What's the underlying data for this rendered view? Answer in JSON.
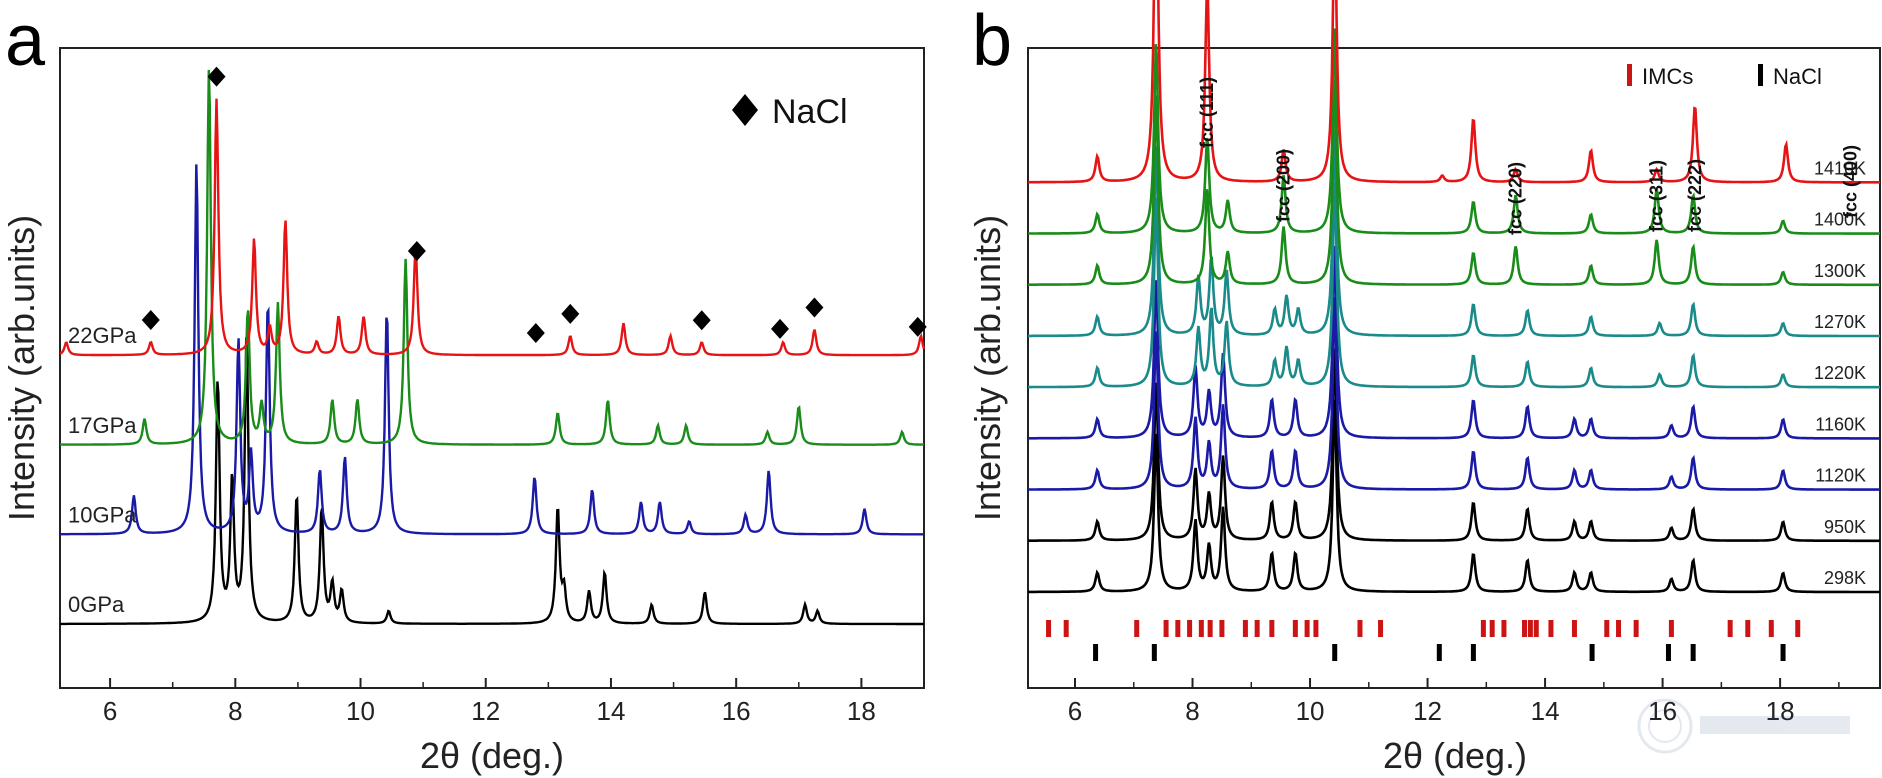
{
  "chart_data": [
    {
      "type": "line",
      "panel": "a",
      "xlabel": "2θ (deg.)",
      "ylabel": "Intensity (arb.units)",
      "xlim": [
        5.2,
        19.0
      ],
      "ylim": [
        0,
        1
      ],
      "xticks": [
        "6",
        "8",
        "10",
        "12",
        "14",
        "16",
        "18"
      ],
      "legend": {
        "label": "NaCl",
        "symbol": "◆",
        "position": "top-right"
      },
      "nacl_markers_2theta": [
        6.65,
        7.7,
        10.9,
        12.8,
        13.35,
        15.45,
        16.7,
        17.25,
        18.9
      ],
      "series": [
        {
          "name": "0GPa",
          "color": "#000000",
          "baseline": 0.1,
          "label": "0GPa",
          "peaks": [
            [
              7.72,
              0.38
            ],
            [
              7.95,
              0.22
            ],
            [
              8.18,
              0.45
            ],
            [
              8.98,
              0.2
            ],
            [
              9.38,
              0.18
            ],
            [
              9.55,
              0.06
            ],
            [
              9.7,
              0.05
            ],
            [
              10.45,
              0.02
            ],
            [
              13.15,
              0.18
            ],
            [
              13.25,
              0.05
            ],
            [
              13.65,
              0.05
            ],
            [
              13.9,
              0.08
            ],
            [
              14.65,
              0.03
            ],
            [
              15.5,
              0.05
            ],
            [
              17.1,
              0.03
            ],
            [
              17.3,
              0.02
            ]
          ]
        },
        {
          "name": "10GPa",
          "color": "#1a1aa6",
          "baseline": 0.24,
          "label": "10GPa",
          "peaks": [
            [
              6.38,
              0.06
            ],
            [
              7.38,
              0.58
            ],
            [
              8.05,
              0.3
            ],
            [
              8.25,
              0.12
            ],
            [
              8.52,
              0.36
            ],
            [
              9.35,
              0.1
            ],
            [
              9.75,
              0.12
            ],
            [
              10.42,
              0.35
            ],
            [
              12.78,
              0.09
            ],
            [
              13.7,
              0.07
            ],
            [
              14.48,
              0.05
            ],
            [
              14.78,
              0.05
            ],
            [
              15.25,
              0.02
            ],
            [
              16.15,
              0.03
            ],
            [
              16.52,
              0.1
            ],
            [
              18.05,
              0.04
            ]
          ]
        },
        {
          "name": "17GPa",
          "color": "#1a8c1a",
          "baseline": 0.38,
          "label": "17GPa",
          "peaks": [
            [
              6.55,
              0.04
            ],
            [
              7.58,
              0.59
            ],
            [
              8.2,
              0.21
            ],
            [
              8.42,
              0.06
            ],
            [
              8.68,
              0.22
            ],
            [
              9.55,
              0.07
            ],
            [
              9.95,
              0.07
            ],
            [
              10.72,
              0.29
            ],
            [
              13.15,
              0.05
            ],
            [
              13.95,
              0.07
            ],
            [
              14.75,
              0.03
            ],
            [
              15.2,
              0.03
            ],
            [
              16.5,
              0.02
            ],
            [
              17.0,
              0.06
            ],
            [
              18.65,
              0.02
            ]
          ]
        },
        {
          "name": "22GPa",
          "color": "#e61414",
          "baseline": 0.52,
          "label": "22GPa",
          "peaks": [
            [
              5.3,
              0.02
            ],
            [
              6.65,
              0.02
            ],
            [
              7.7,
              0.4
            ],
            [
              8.3,
              0.18
            ],
            [
              8.55,
              0.04
            ],
            [
              8.8,
              0.21
            ],
            [
              9.3,
              0.02
            ],
            [
              9.65,
              0.06
            ],
            [
              10.05,
              0.06
            ],
            [
              10.88,
              0.17
            ],
            [
              13.35,
              0.03
            ],
            [
              14.2,
              0.05
            ],
            [
              14.95,
              0.03
            ],
            [
              15.45,
              0.02
            ],
            [
              16.75,
              0.02
            ],
            [
              17.25,
              0.04
            ],
            [
              18.95,
              0.03
            ]
          ]
        }
      ]
    },
    {
      "type": "line",
      "panel": "b",
      "xlabel": "2θ (deg.)",
      "ylabel": "Intensity (arb.units)",
      "xlim": [
        5.2,
        19.7
      ],
      "ylim": [
        0,
        1
      ],
      "xticks": [
        "6",
        "8",
        "10",
        "12",
        "14",
        "16",
        "18"
      ],
      "legend": [
        {
          "label": "IMCs",
          "color": "#cc1414"
        },
        {
          "label": "NaCl",
          "color": "#000000"
        }
      ],
      "fcc_annotations": [
        {
          "label": "fcc (111)",
          "x": 8.25
        },
        {
          "label": "fcc (200)",
          "x": 9.55
        },
        {
          "label": "fcc (220)",
          "x": 13.5
        },
        {
          "label": "fcc (311)",
          "x": 15.9
        },
        {
          "label": "fcc (222)",
          "x": 16.55
        },
        {
          "label": "fcc (400)",
          "x": 19.2
        }
      ],
      "imc_ticks_2theta": [
        5.55,
        5.85,
        7.05,
        7.55,
        7.75,
        7.95,
        8.15,
        8.3,
        8.5,
        8.9,
        9.1,
        9.35,
        9.75,
        9.95,
        10.1,
        10.85,
        11.2,
        12.95,
        13.1,
        13.3,
        13.65,
        13.75,
        13.85,
        14.1,
        14.5,
        15.05,
        15.25,
        15.55,
        16.15,
        17.15,
        17.45,
        17.85,
        18.3
      ],
      "nacl_ticks_2theta": [
        6.35,
        7.35,
        10.42,
        12.2,
        12.78,
        14.8,
        16.1,
        16.52,
        18.05
      ],
      "series": [
        {
          "name": "298K",
          "label": "298K",
          "color": "#000000",
          "baseline": 0.15
        },
        {
          "name": "950K",
          "label": "950K",
          "color": "#000000",
          "baseline": 0.23
        },
        {
          "name": "1120K",
          "label": "1120K",
          "color": "#1a1aa6",
          "baseline": 0.31
        },
        {
          "name": "1160K",
          "label": "1160K",
          "color": "#1a1aa6",
          "baseline": 0.39
        },
        {
          "name": "1220K",
          "label": "1220K",
          "color": "#1a8a8a",
          "baseline": 0.47
        },
        {
          "name": "1270K",
          "label": "1270K",
          "color": "#1a8a8a",
          "baseline": 0.55
        },
        {
          "name": "1300K",
          "label": "1300K",
          "color": "#1a8c1a",
          "baseline": 0.63
        },
        {
          "name": "1400K",
          "label": "1400K",
          "color": "#1a8c1a",
          "baseline": 0.71
        },
        {
          "name": "1410K",
          "label": "1410K",
          "color": "#e61414",
          "baseline": 0.79
        }
      ],
      "peak_sets": {
        "low": [
          [
            6.38,
            0.03
          ],
          [
            7.38,
            0.25
          ],
          [
            8.05,
            0.11
          ],
          [
            8.28,
            0.07
          ],
          [
            8.52,
            0.13
          ],
          [
            9.35,
            0.06
          ],
          [
            9.75,
            0.06
          ],
          [
            10.42,
            0.3
          ],
          [
            12.78,
            0.06
          ],
          [
            13.7,
            0.05
          ],
          [
            14.5,
            0.03
          ],
          [
            14.78,
            0.03
          ],
          [
            16.15,
            0.02
          ],
          [
            16.52,
            0.05
          ],
          [
            18.05,
            0.03
          ]
        ],
        "mid": [
          [
            6.38,
            0.03
          ],
          [
            7.38,
            0.3
          ],
          [
            8.1,
            0.09
          ],
          [
            8.32,
            0.12
          ],
          [
            8.58,
            0.1
          ],
          [
            9.4,
            0.04
          ],
          [
            9.6,
            0.06
          ],
          [
            9.8,
            0.04
          ],
          [
            10.42,
            0.32
          ],
          [
            12.78,
            0.05
          ],
          [
            13.7,
            0.04
          ],
          [
            14.78,
            0.03
          ],
          [
            15.95,
            0.02
          ],
          [
            16.52,
            0.05
          ],
          [
            18.05,
            0.02
          ]
        ],
        "high": [
          [
            6.38,
            0.03
          ],
          [
            7.38,
            0.3
          ],
          [
            8.25,
            0.15
          ],
          [
            8.6,
            0.05
          ],
          [
            9.55,
            0.09
          ],
          [
            10.42,
            0.32
          ],
          [
            12.78,
            0.05
          ],
          [
            13.5,
            0.06
          ],
          [
            14.78,
            0.03
          ],
          [
            15.9,
            0.07
          ],
          [
            16.52,
            0.06
          ],
          [
            18.05,
            0.02
          ]
        ],
        "top": [
          [
            6.38,
            0.04
          ],
          [
            7.38,
            0.55
          ],
          [
            8.25,
            0.31
          ],
          [
            9.55,
            0.05
          ],
          [
            10.42,
            0.42
          ],
          [
            12.25,
            0.01
          ],
          [
            12.78,
            0.1
          ],
          [
            13.5,
            0.02
          ],
          [
            14.78,
            0.05
          ],
          [
            15.9,
            0.02
          ],
          [
            16.55,
            0.12
          ],
          [
            18.1,
            0.06
          ]
        ]
      },
      "series_peak_set": [
        "low",
        "low",
        "low",
        "low",
        "mid",
        "mid",
        "high",
        "high",
        "top"
      ]
    }
  ],
  "panel_labels": {
    "a": "a",
    "b": "b"
  },
  "watermark": "Institute logo (decorative)"
}
